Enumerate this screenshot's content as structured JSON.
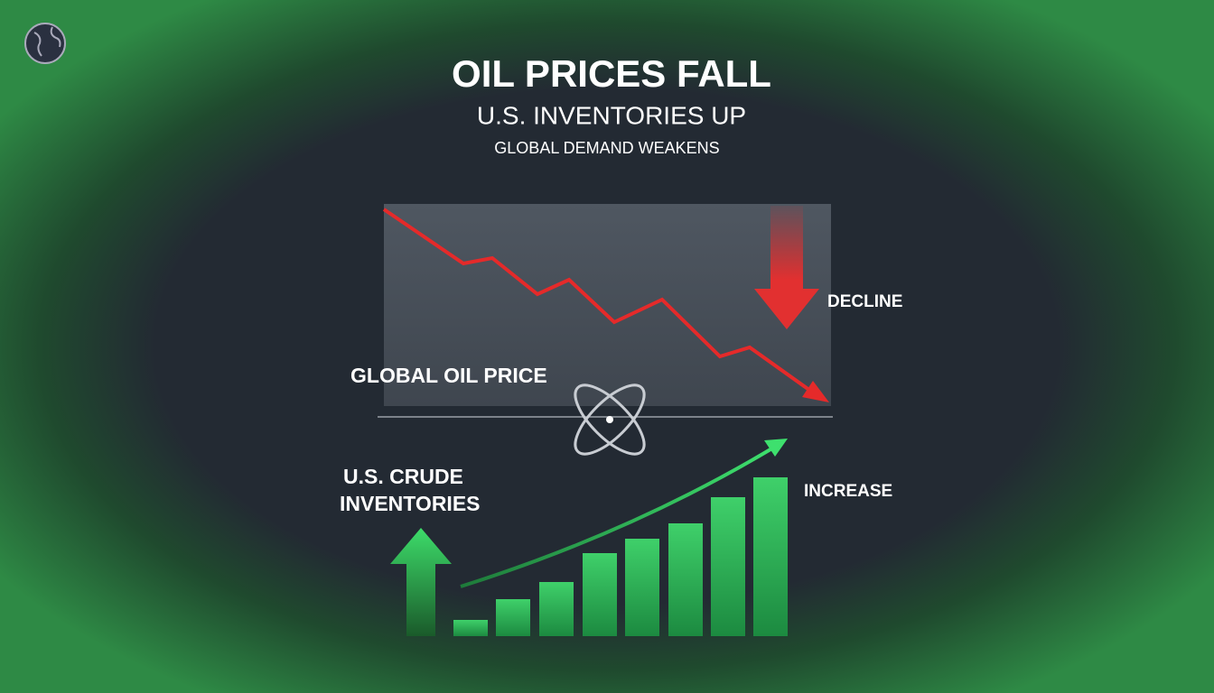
{
  "header": {
    "title": "OIL PRICES FALL",
    "subtitle": "U.S. INVENTORIES UP",
    "tagline": "GLOBAL DEMAND WEAKENS"
  },
  "price_panel": {
    "label": "GLOBAL OIL PRICE",
    "trend": "DECLINE"
  },
  "inventory_panel": {
    "label_lines": [
      "U.S. CRUDE",
      "INVENTORIES"
    ],
    "trend": "INCREASE"
  }
}
